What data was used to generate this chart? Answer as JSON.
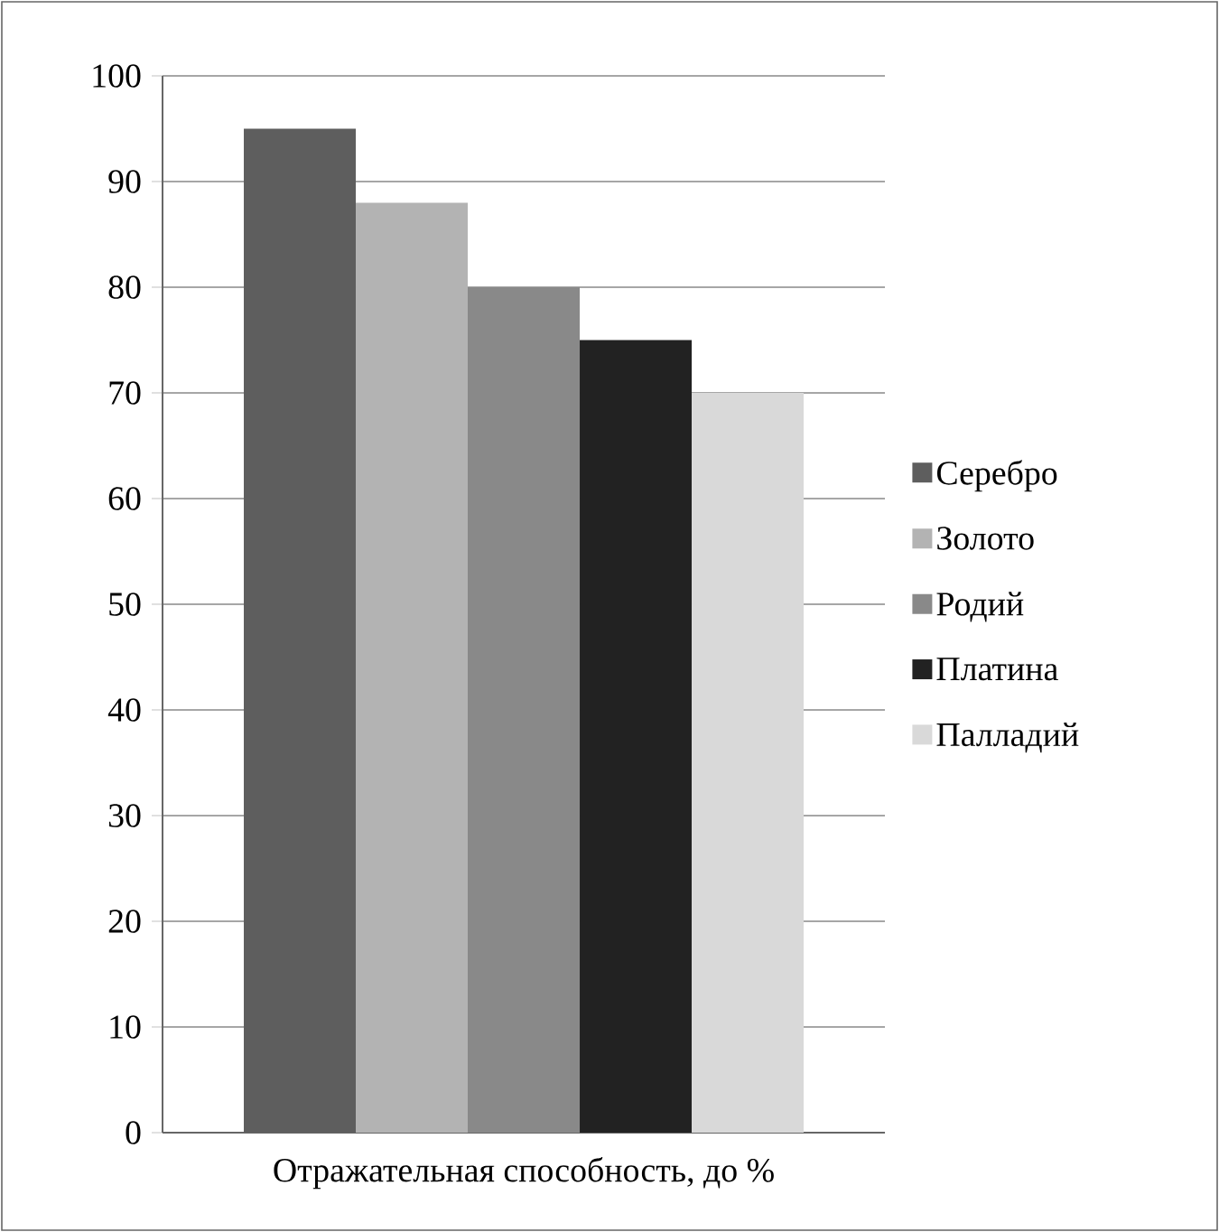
{
  "chart_data": {
    "type": "bar",
    "categories": [
      "Отражательная способность, до %"
    ],
    "series": [
      {
        "name": "Серебро",
        "color": "#5e5e5e",
        "values": [
          95
        ]
      },
      {
        "name": "Золото",
        "color": "#b3b3b3",
        "values": [
          88
        ]
      },
      {
        "name": "Родий",
        "color": "#898989",
        "values": [
          80
        ]
      },
      {
        "name": "Платина",
        "color": "#222222",
        "values": [
          75
        ]
      },
      {
        "name": "Палладий",
        "color": "#d9d9d9",
        "values": [
          70
        ]
      }
    ],
    "ylim": [
      0,
      100
    ],
    "yticks": [
      0,
      10,
      20,
      30,
      40,
      50,
      60,
      70,
      80,
      90,
      100
    ],
    "grid": "y",
    "legend": "right"
  }
}
